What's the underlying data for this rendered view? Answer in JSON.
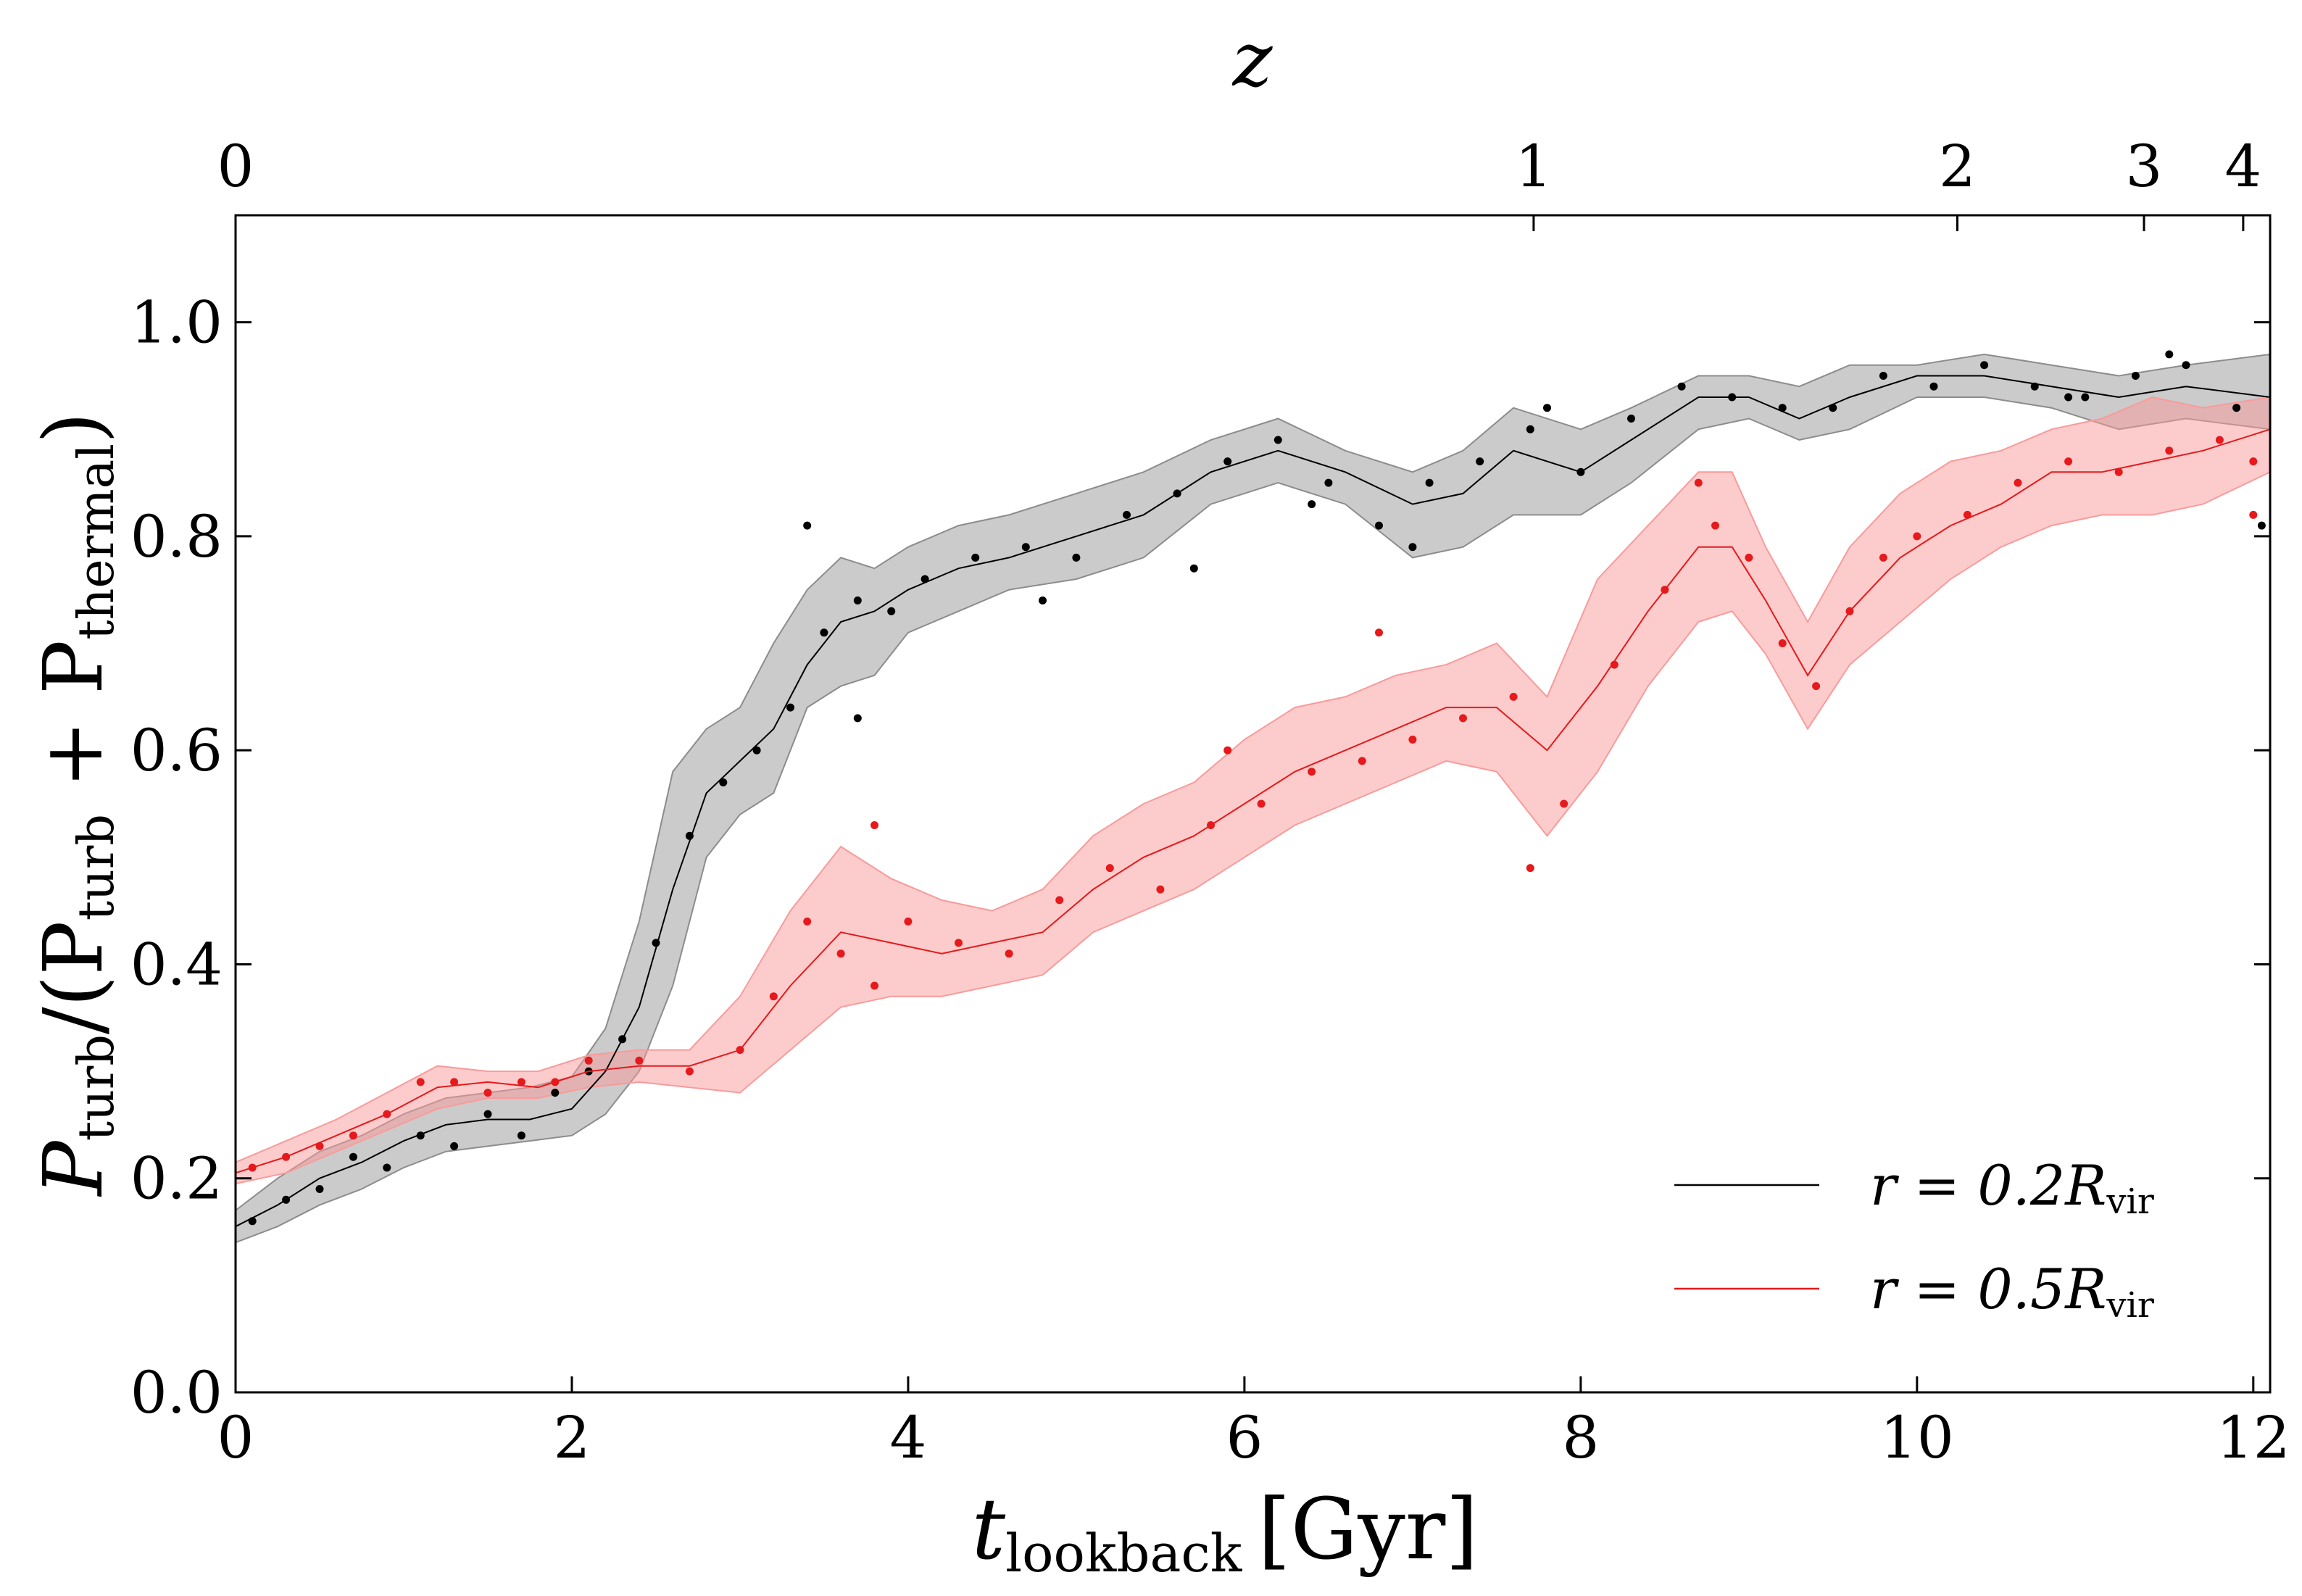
{
  "chart_data": {
    "type": "line",
    "xlabel": {
      "main": "t",
      "sub": "lookback",
      "unit": "[Gyr]"
    },
    "ylabel": {
      "p1": "P",
      "s1": "turb",
      "p2": "/(P",
      "s2": "turb",
      "p3": " + P",
      "s3": "thermal",
      "p4": ")"
    },
    "top_axis_label": "z",
    "xlim": [
      0,
      12.1
    ],
    "ylim": [
      0.0,
      1.1
    ],
    "x_ticks": [
      0,
      2,
      4,
      6,
      8,
      10,
      12
    ],
    "x_tick_labels": [
      "0",
      "2",
      "4",
      "6",
      "8",
      "10",
      "12"
    ],
    "y_ticks": [
      0.0,
      0.2,
      0.4,
      0.6,
      0.8,
      1.0
    ],
    "y_tick_labels": [
      "0.0",
      "0.2",
      "0.4",
      "0.6",
      "0.8",
      "1.0"
    ],
    "top_ticks": [
      {
        "t": 0.0,
        "label": "0"
      },
      {
        "t": 7.72,
        "label": "1"
      },
      {
        "t": 10.24,
        "label": "2"
      },
      {
        "t": 11.35,
        "label": "3"
      },
      {
        "t": 11.94,
        "label": "4"
      }
    ],
    "legend_position": "lower-right",
    "series": [
      {
        "name": "r = 0.2R_vir",
        "legend": {
          "lhs": "r = 0.2R",
          "sub": "vir"
        },
        "color": "#000000",
        "band_color": "#8c8c8c",
        "t": [
          0.0,
          0.25,
          0.5,
          0.75,
          1.0,
          1.25,
          1.5,
          1.75,
          2.0,
          2.2,
          2.4,
          2.6,
          2.8,
          3.0,
          3.2,
          3.4,
          3.6,
          3.8,
          4.0,
          4.3,
          4.6,
          5.0,
          5.4,
          5.8,
          6.2,
          6.6,
          7.0,
          7.3,
          7.6,
          8.0,
          8.3,
          8.7,
          9.0,
          9.3,
          9.6,
          10.0,
          10.4,
          10.8,
          11.2,
          11.6,
          12.1
        ],
        "median": [
          0.155,
          0.175,
          0.2,
          0.215,
          0.235,
          0.25,
          0.255,
          0.255,
          0.265,
          0.3,
          0.36,
          0.47,
          0.56,
          0.59,
          0.62,
          0.68,
          0.72,
          0.73,
          0.75,
          0.77,
          0.78,
          0.8,
          0.82,
          0.86,
          0.88,
          0.86,
          0.83,
          0.84,
          0.88,
          0.86,
          0.89,
          0.93,
          0.93,
          0.91,
          0.93,
          0.95,
          0.95,
          0.94,
          0.93,
          0.94,
          0.93
        ],
        "upper": [
          0.17,
          0.2,
          0.225,
          0.24,
          0.26,
          0.275,
          0.28,
          0.285,
          0.295,
          0.34,
          0.44,
          0.58,
          0.62,
          0.64,
          0.7,
          0.75,
          0.78,
          0.77,
          0.79,
          0.81,
          0.82,
          0.84,
          0.86,
          0.89,
          0.91,
          0.88,
          0.86,
          0.88,
          0.92,
          0.9,
          0.92,
          0.95,
          0.95,
          0.94,
          0.96,
          0.96,
          0.97,
          0.96,
          0.95,
          0.96,
          0.97
        ],
        "lower": [
          0.14,
          0.155,
          0.175,
          0.19,
          0.21,
          0.225,
          0.23,
          0.235,
          0.24,
          0.26,
          0.3,
          0.38,
          0.5,
          0.54,
          0.56,
          0.64,
          0.66,
          0.67,
          0.71,
          0.73,
          0.75,
          0.76,
          0.78,
          0.83,
          0.85,
          0.83,
          0.78,
          0.79,
          0.82,
          0.82,
          0.85,
          0.9,
          0.91,
          0.89,
          0.9,
          0.93,
          0.93,
          0.92,
          0.9,
          0.91,
          0.9
        ],
        "scatter_t": [
          0.1,
          0.3,
          0.5,
          0.7,
          0.9,
          1.1,
          1.3,
          1.5,
          1.7,
          1.9,
          2.1,
          2.3,
          2.5,
          2.7,
          2.9,
          3.1,
          3.3,
          3.5,
          3.7,
          3.9,
          4.1,
          4.4,
          4.7,
          5.0,
          5.3,
          5.6,
          5.9,
          6.2,
          6.5,
          6.8,
          7.1,
          7.4,
          7.7,
          8.0,
          8.3,
          8.6,
          8.9,
          9.2,
          9.5,
          9.8,
          10.1,
          10.4,
          10.7,
          11.0,
          11.3,
          11.6,
          11.9,
          3.4,
          3.7,
          4.8,
          5.7,
          6.4,
          7.0,
          7.8,
          10.9,
          11.5,
          12.05
        ],
        "scatter_y": [
          0.16,
          0.18,
          0.19,
          0.22,
          0.21,
          0.24,
          0.23,
          0.26,
          0.24,
          0.28,
          0.3,
          0.33,
          0.42,
          0.52,
          0.57,
          0.6,
          0.64,
          0.71,
          0.74,
          0.73,
          0.76,
          0.78,
          0.79,
          0.78,
          0.82,
          0.84,
          0.87,
          0.89,
          0.85,
          0.81,
          0.85,
          0.87,
          0.9,
          0.86,
          0.91,
          0.94,
          0.93,
          0.92,
          0.92,
          0.95,
          0.94,
          0.96,
          0.94,
          0.93,
          0.95,
          0.96,
          0.92,
          0.81,
          0.63,
          0.74,
          0.77,
          0.83,
          0.79,
          0.92,
          0.93,
          0.97,
          0.81
        ]
      },
      {
        "name": "r = 0.5R_vir",
        "legend": {
          "lhs": "r = 0.5R",
          "sub": "vir"
        },
        "color": "#e6191c",
        "band_color": "#fa9a9a",
        "t": [
          0.0,
          0.3,
          0.6,
          0.9,
          1.2,
          1.5,
          1.8,
          2.1,
          2.4,
          2.7,
          3.0,
          3.3,
          3.6,
          3.9,
          4.2,
          4.5,
          4.8,
          5.1,
          5.4,
          5.7,
          6.0,
          6.3,
          6.6,
          6.9,
          7.2,
          7.5,
          7.8,
          8.1,
          8.4,
          8.7,
          8.9,
          9.1,
          9.35,
          9.6,
          9.9,
          10.2,
          10.5,
          10.8,
          11.1,
          11.4,
          11.7,
          12.1
        ],
        "median": [
          0.205,
          0.22,
          0.24,
          0.26,
          0.285,
          0.29,
          0.285,
          0.3,
          0.305,
          0.305,
          0.32,
          0.38,
          0.43,
          0.42,
          0.41,
          0.42,
          0.43,
          0.47,
          0.5,
          0.52,
          0.55,
          0.58,
          0.6,
          0.62,
          0.64,
          0.64,
          0.6,
          0.66,
          0.73,
          0.79,
          0.79,
          0.74,
          0.67,
          0.73,
          0.78,
          0.81,
          0.83,
          0.86,
          0.86,
          0.87,
          0.88,
          0.9
        ],
        "upper": [
          0.215,
          0.235,
          0.255,
          0.28,
          0.305,
          0.3,
          0.3,
          0.315,
          0.32,
          0.32,
          0.37,
          0.45,
          0.51,
          0.48,
          0.46,
          0.45,
          0.47,
          0.52,
          0.55,
          0.57,
          0.61,
          0.64,
          0.65,
          0.67,
          0.68,
          0.7,
          0.65,
          0.76,
          0.81,
          0.86,
          0.86,
          0.79,
          0.72,
          0.79,
          0.84,
          0.87,
          0.88,
          0.9,
          0.91,
          0.93,
          0.92,
          0.93
        ],
        "lower": [
          0.195,
          0.205,
          0.225,
          0.245,
          0.265,
          0.275,
          0.275,
          0.285,
          0.29,
          0.285,
          0.28,
          0.32,
          0.36,
          0.37,
          0.37,
          0.38,
          0.39,
          0.43,
          0.45,
          0.47,
          0.5,
          0.53,
          0.55,
          0.57,
          0.59,
          0.58,
          0.52,
          0.58,
          0.66,
          0.72,
          0.73,
          0.69,
          0.62,
          0.68,
          0.72,
          0.76,
          0.79,
          0.81,
          0.82,
          0.82,
          0.83,
          0.86
        ],
        "scatter_t": [
          0.1,
          0.3,
          0.5,
          0.7,
          0.9,
          1.1,
          1.3,
          1.5,
          1.7,
          1.9,
          2.1,
          2.4,
          2.7,
          3.0,
          3.2,
          3.4,
          3.6,
          3.8,
          4.0,
          4.3,
          4.6,
          4.9,
          5.2,
          5.5,
          5.8,
          6.1,
          6.4,
          6.7,
          7.0,
          7.3,
          7.6,
          7.9,
          8.2,
          8.5,
          8.8,
          9.0,
          9.2,
          9.4,
          9.6,
          9.8,
          10.0,
          10.3,
          10.6,
          10.9,
          11.2,
          11.5,
          11.8,
          12.0,
          3.8,
          5.9,
          6.8,
          7.7,
          8.7,
          12.0
        ],
        "scatter_y": [
          0.21,
          0.22,
          0.23,
          0.24,
          0.26,
          0.29,
          0.29,
          0.28,
          0.29,
          0.29,
          0.31,
          0.31,
          0.3,
          0.32,
          0.37,
          0.44,
          0.41,
          0.38,
          0.44,
          0.42,
          0.41,
          0.46,
          0.49,
          0.47,
          0.53,
          0.55,
          0.58,
          0.59,
          0.61,
          0.63,
          0.65,
          0.55,
          0.68,
          0.75,
          0.81,
          0.78,
          0.7,
          0.66,
          0.73,
          0.78,
          0.8,
          0.82,
          0.85,
          0.87,
          0.86,
          0.88,
          0.89,
          0.87,
          0.53,
          0.6,
          0.71,
          0.49,
          0.85,
          0.82
        ]
      }
    ]
  }
}
